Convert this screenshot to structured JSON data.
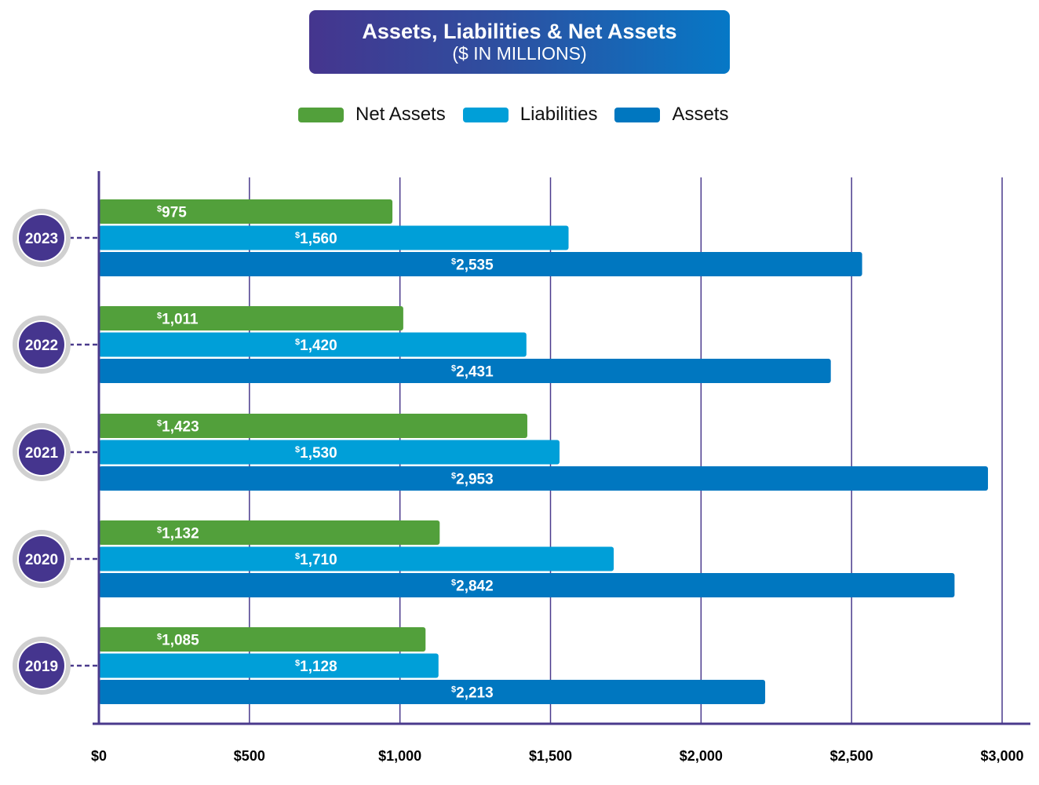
{
  "chart_data": {
    "type": "bar",
    "orientation": "horizontal",
    "title": "Assets, Liabilities & Net Assets",
    "subtitle": "($ IN MILLIONS)",
    "categories": [
      "2023",
      "2022",
      "2021",
      "2020",
      "2019"
    ],
    "series": [
      {
        "name": "Net Assets",
        "color": "#52a03b",
        "values": [
          975,
          1011,
          1423,
          1132,
          1085
        ],
        "labels": [
          "975",
          "1,011",
          "1,423",
          "1,132",
          "1,085"
        ]
      },
      {
        "name": "Liabilities",
        "color": "#009fd8",
        "values": [
          1560,
          1420,
          1530,
          1710,
          1128
        ],
        "labels": [
          "1,560",
          "1,420",
          "1,530",
          "1,710",
          "1,128"
        ]
      },
      {
        "name": "Assets",
        "color": "#0077c0",
        "values": [
          2535,
          2431,
          2953,
          2842,
          2213
        ],
        "labels": [
          "2,535",
          "2,431",
          "2,953",
          "2,842",
          "2,213"
        ]
      }
    ],
    "xlim": [
      0,
      3000
    ],
    "xticks": [
      0,
      500,
      1000,
      1500,
      2000,
      2500,
      3000
    ],
    "xtick_labels": [
      "$0",
      "$500",
      "$1,000",
      "$1,500",
      "$2,000",
      "$2,500",
      "$3,000"
    ],
    "value_prefix": "$",
    "grid": true,
    "legend": "top-center",
    "colors": {
      "axis": "#4a3a8c",
      "year_badge": "#45358e",
      "badge_ring": "#d0d0d0"
    }
  }
}
